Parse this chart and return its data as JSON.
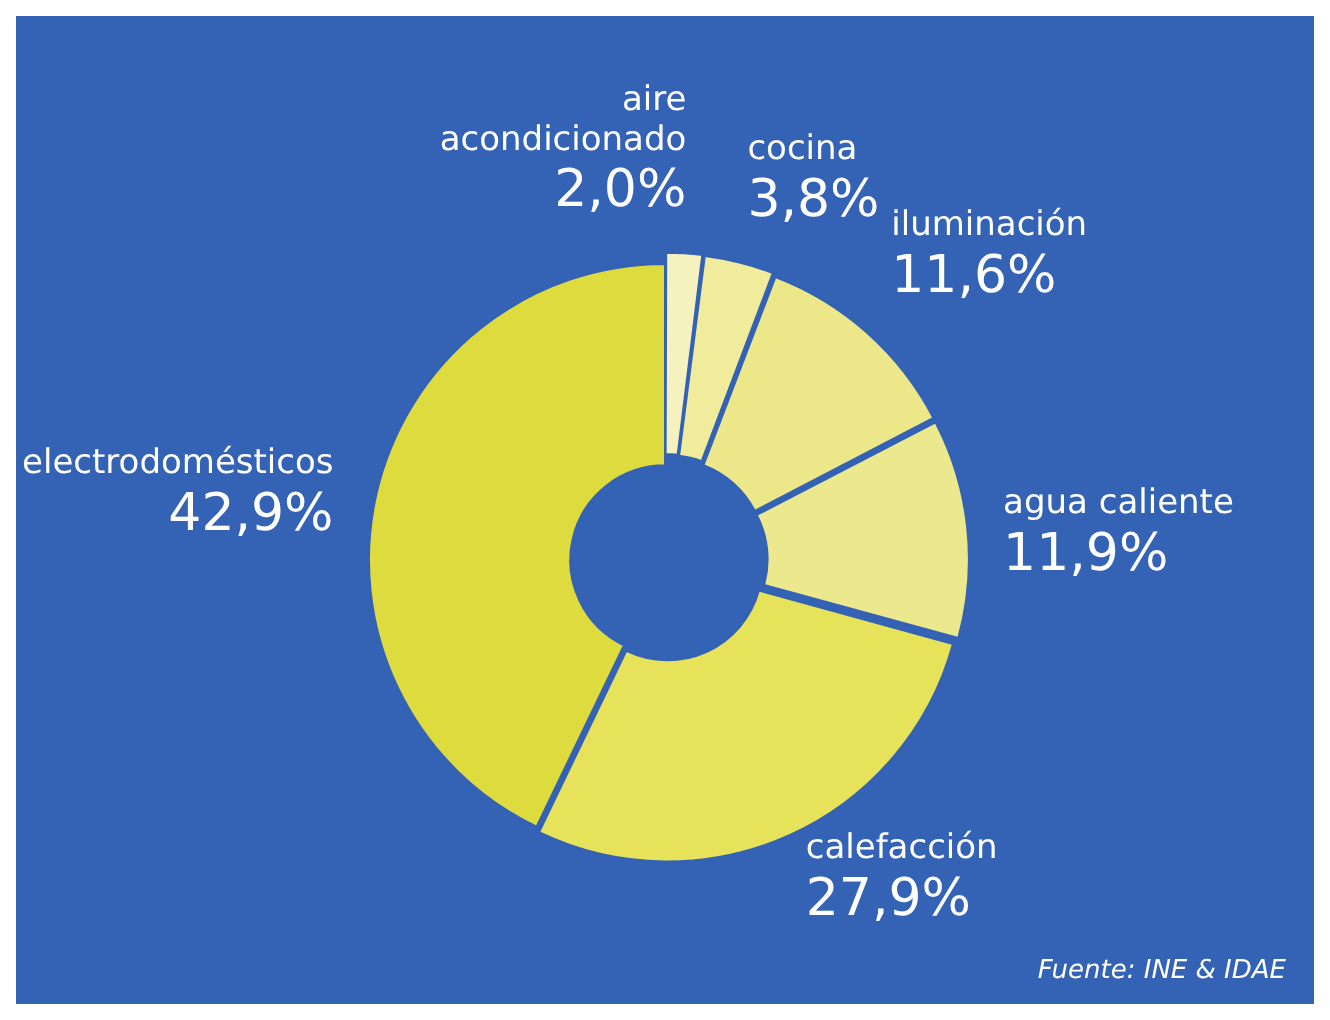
{
  "chart_data": {
    "type": "donut",
    "categories": [
      "aire acondicionado",
      "cocina",
      "iluminación",
      "agua caliente",
      "calefacción",
      "electrodomésticos"
    ],
    "values": [
      2.0,
      3.8,
      11.6,
      11.9,
      27.9,
      42.9
    ],
    "value_labels": [
      "2,0%",
      "3,8%",
      "11,6%",
      "11,9%",
      "27,9%",
      "42,9%"
    ],
    "colors": [
      "#f6f2c0",
      "#f1ec9c",
      "#ece88a",
      "#ebe88e",
      "#e6e25a",
      "#dedb3e"
    ],
    "annotations": [
      "Fuente: INE & IDAE"
    ],
    "legend": false
  }
}
